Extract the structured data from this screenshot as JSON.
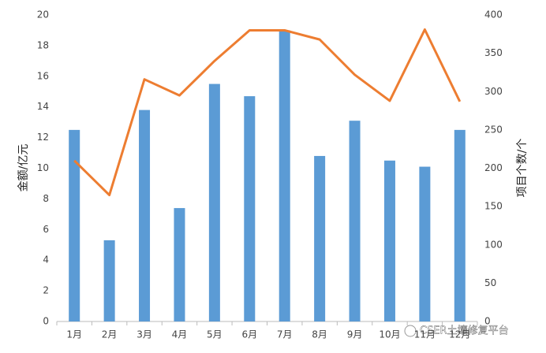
{
  "chart_data": {
    "type": "bar",
    "categories": [
      "1月",
      "2月",
      "3月",
      "4月",
      "5月",
      "6月",
      "7月",
      "8月",
      "9月",
      "10月",
      "11月",
      "12月"
    ],
    "series": [
      {
        "name": "金额",
        "type": "bar",
        "axis": "y",
        "color": "#5b9bd5",
        "values": [
          12.5,
          5.3,
          13.8,
          7.4,
          15.5,
          14.7,
          19.0,
          10.8,
          13.1,
          10.5,
          10.1,
          12.5
        ]
      },
      {
        "name": "项目个数",
        "type": "line",
        "axis": "y2",
        "color": "#ed7d31",
        "values": [
          210,
          165,
          316,
          295,
          340,
          380,
          380,
          368,
          322,
          288,
          381,
          287
        ]
      }
    ],
    "ylabel": "金额/亿元",
    "y2label": "项目个数/个",
    "ylim": [
      0,
      20
    ],
    "yticks": [
      0,
      2,
      4,
      6,
      8,
      10,
      12,
      14,
      16,
      18,
      20
    ],
    "y2lim": [
      0,
      400
    ],
    "y2ticks": [
      0,
      50,
      100,
      150,
      200,
      250,
      300,
      350,
      400
    ],
    "grid": false
  },
  "watermark": "CSER土壤修复平台"
}
